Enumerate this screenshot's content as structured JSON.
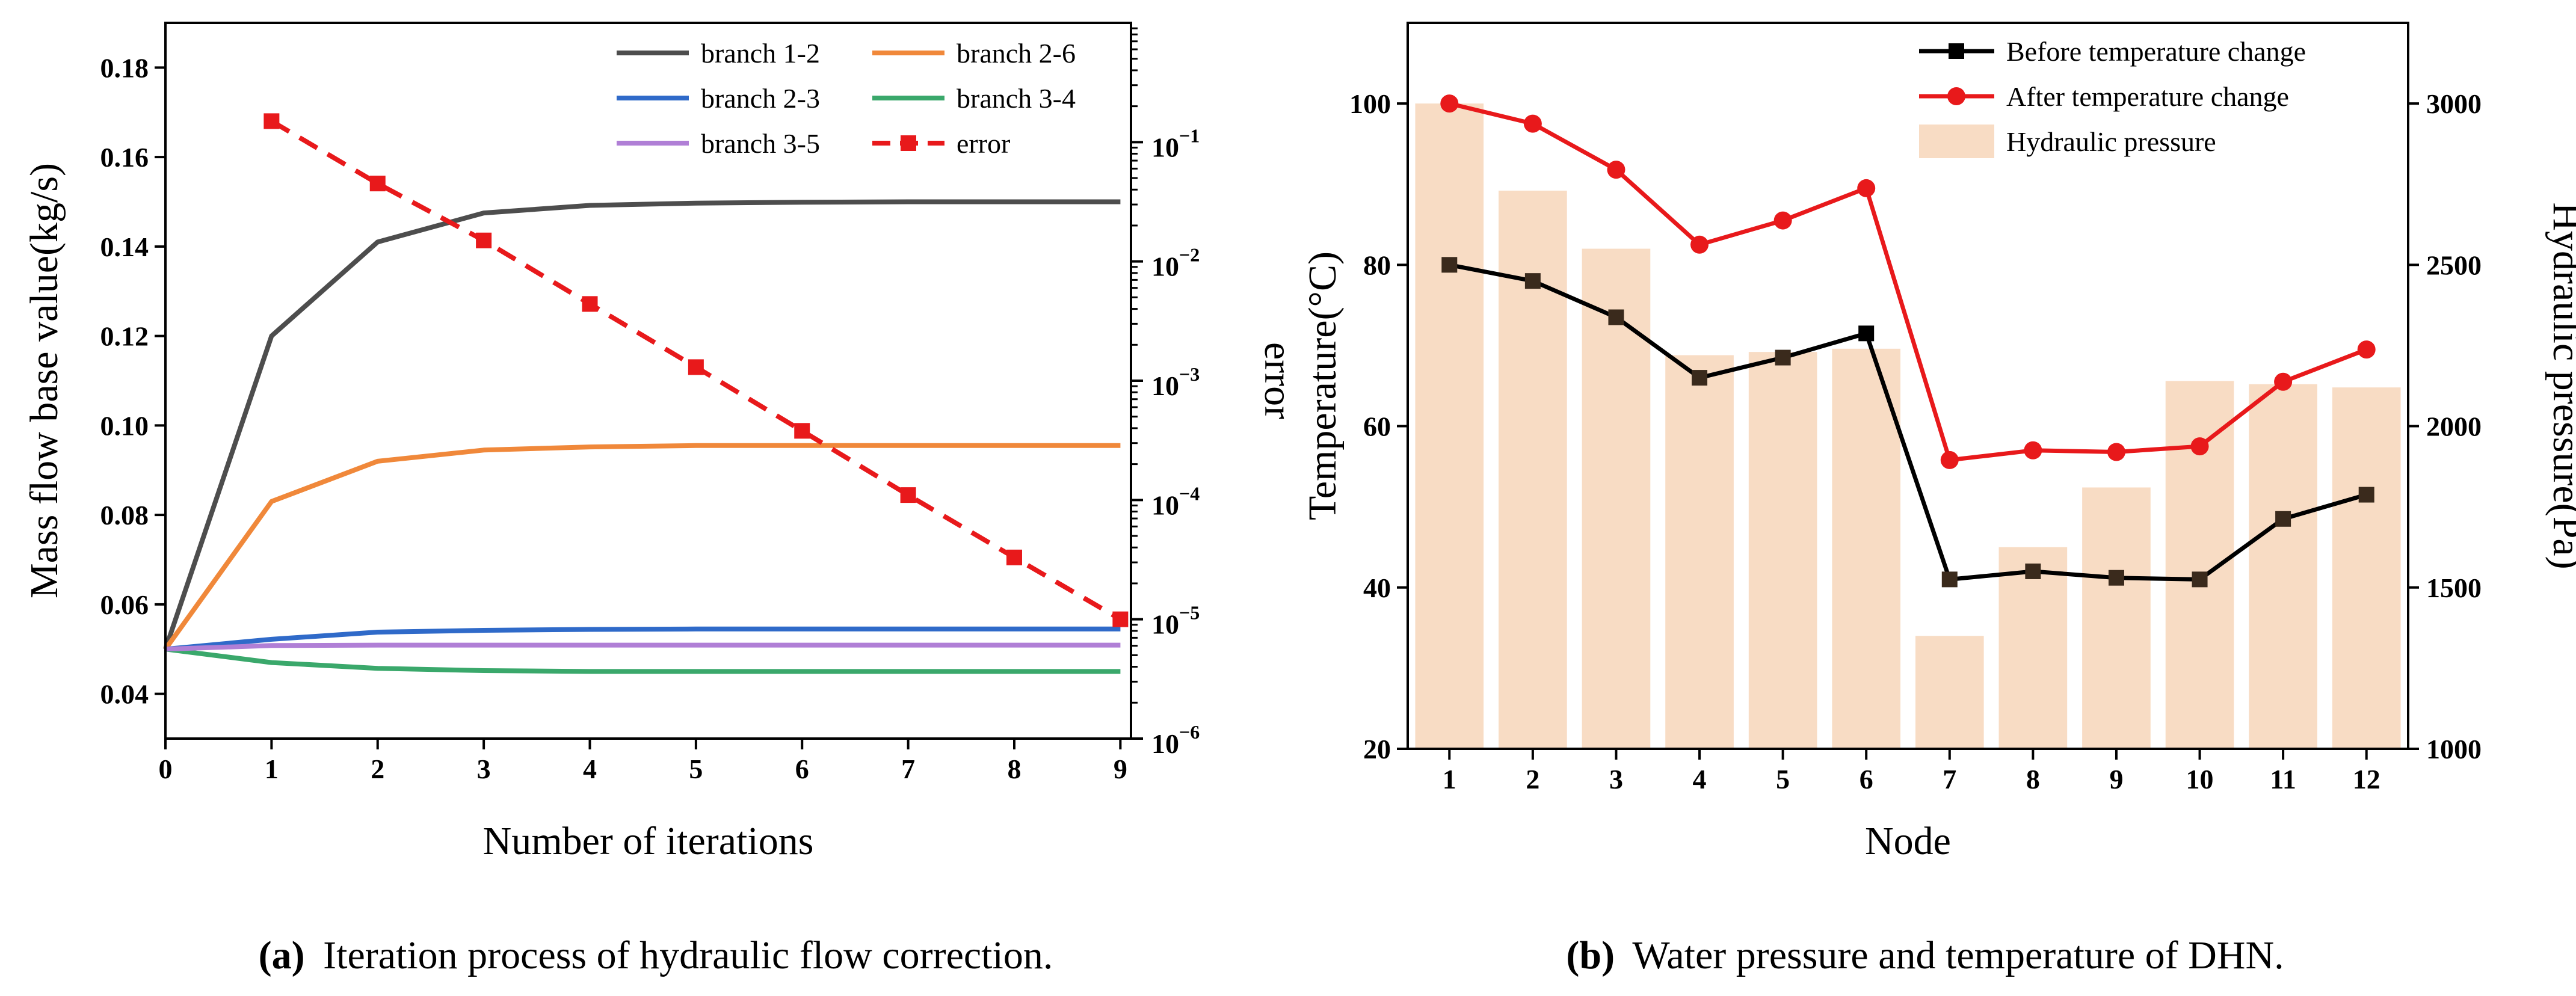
{
  "captions": {
    "a_tag": "(a)",
    "a_text": "Iteration process of hydraulic flow correction.",
    "b_tag": "(b)",
    "b_text": "Water pressure and temperature of DHN."
  },
  "chart_data": [
    {
      "type": "line",
      "xlabel": "Number of iterations",
      "ylabel": "Mass flow base value(kg/s)",
      "y2label": "error",
      "x": [
        0,
        1,
        2,
        3,
        4,
        5,
        6,
        7,
        8,
        9
      ],
      "xticks": [
        "0",
        "1",
        "2",
        "3",
        "4",
        "5",
        "6",
        "7",
        "8",
        "9"
      ],
      "xlim": [
        0,
        9.1
      ],
      "ylim": [
        0.03,
        0.19
      ],
      "yticks": [
        "0.04",
        "0.06",
        "0.08",
        "0.10",
        "0.12",
        "0.14",
        "0.16",
        "0.18"
      ],
      "y2_scale": "log",
      "y2lim": [
        1e-06,
        1
      ],
      "y2ticks": [
        {
          "value": 1e-06,
          "base": "10",
          "exp": "−6"
        },
        {
          "value": 1e-05,
          "base": "10",
          "exp": "−5"
        },
        {
          "value": 0.0001,
          "base": "10",
          "exp": "−4"
        },
        {
          "value": 0.001,
          "base": "10",
          "exp": "−3"
        },
        {
          "value": 0.01,
          "base": "10",
          "exp": "−2"
        },
        {
          "value": 0.1,
          "base": "10",
          "exp": "−1"
        }
      ],
      "legend_position": "top-right",
      "series": [
        {
          "name": "branch 1-2",
          "color": "#4d4d4d",
          "axis": "left",
          "style": "solid",
          "values": [
            0.05,
            0.12,
            0.141,
            0.1475,
            0.1492,
            0.1497,
            0.1499,
            0.15,
            0.15,
            0.15
          ]
        },
        {
          "name": "branch 2-6",
          "color": "#f0883a",
          "axis": "left",
          "style": "solid",
          "values": [
            0.05,
            0.083,
            0.092,
            0.0945,
            0.0952,
            0.0955,
            0.0955,
            0.0955,
            0.0955,
            0.0955
          ]
        },
        {
          "name": "branch 2-3",
          "color": "#2f6ac9",
          "axis": "left",
          "style": "solid",
          "values": [
            0.05,
            0.0522,
            0.0538,
            0.0542,
            0.0544,
            0.0545,
            0.0545,
            0.0545,
            0.0545,
            0.0545
          ]
        },
        {
          "name": "branch 3-4",
          "color": "#3aa86b",
          "axis": "left",
          "style": "solid",
          "values": [
            0.05,
            0.047,
            0.0457,
            0.0452,
            0.045,
            0.045,
            0.045,
            0.045,
            0.045,
            0.045
          ]
        },
        {
          "name": "branch 3-5",
          "color": "#b07fd6",
          "axis": "left",
          "style": "solid",
          "values": [
            0.05,
            0.0508,
            0.0509,
            0.0509,
            0.0509,
            0.0509,
            0.0509,
            0.0509,
            0.0509,
            0.0509
          ]
        },
        {
          "name": "error",
          "color": "#e8191b",
          "axis": "right",
          "style": "dashed",
          "marker": "square",
          "x": [
            1,
            2,
            3,
            4,
            5,
            6,
            7,
            8,
            9
          ],
          "values": [
            0.15,
            0.045,
            0.015,
            0.0044,
            0.0013,
            0.00038,
            0.00011,
            3.3e-05,
            1e-05
          ]
        }
      ]
    },
    {
      "type": "bar+line",
      "xlabel": "Node",
      "ylabel": "Temperature(°C)",
      "y2label": "Hydraulic pressure(Pa)",
      "categories": [
        "1",
        "2",
        "3",
        "4",
        "5",
        "6",
        "7",
        "8",
        "9",
        "10",
        "11",
        "12"
      ],
      "ylim": [
        20,
        110
      ],
      "yticks": [
        "20",
        "40",
        "60",
        "80",
        "100"
      ],
      "y2lim": [
        1000,
        3250
      ],
      "y2ticks": [
        "1000",
        "1500",
        "2000",
        "2500",
        "3000"
      ],
      "legend_position": "top-right",
      "series": [
        {
          "name": "Before temperature change",
          "color": "#000000",
          "axis": "left",
          "kind": "line",
          "marker": "square",
          "values": [
            80,
            78,
            73.5,
            66,
            68.5,
            71.5,
            41,
            42,
            41.2,
            41,
            48.5,
            51.5
          ]
        },
        {
          "name": "After temperature change",
          "color": "#e8191b",
          "axis": "left",
          "kind": "line",
          "marker": "circle",
          "values": [
            100,
            97.5,
            91.8,
            82.5,
            85.5,
            89.5,
            55.8,
            57,
            56.8,
            57.5,
            65.5,
            69.5
          ]
        },
        {
          "name": "Hydraulic pressure",
          "color": "#f8dcc4",
          "axis": "right",
          "kind": "bar",
          "values": [
            3000,
            2730,
            2550,
            2220,
            2230,
            2240,
            1350,
            1625,
            1810,
            2140,
            2130,
            2120
          ]
        }
      ]
    }
  ]
}
